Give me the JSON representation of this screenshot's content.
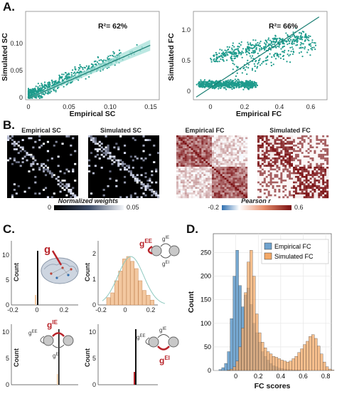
{
  "panels": {
    "A": "A.",
    "B": "B.",
    "C": "C.",
    "D": "D."
  },
  "panel_A": {
    "left": {
      "r2_label": "R²= 62%",
      "xlabel": "Empirical SC",
      "ylabel": "Simulated SC",
      "xticks": [
        "0",
        "0.05",
        "0.10",
        "0.15"
      ],
      "yticks": [
        "0",
        "0.05",
        "0.10"
      ]
    },
    "right": {
      "r2_label": "R²= 66%",
      "xlabel": "Empirical FC",
      "ylabel": "Simulated FC",
      "xticks": [
        "0",
        "0.2",
        "0.4",
        "0.6"
      ],
      "yticks": [
        "0",
        "0.5",
        "1.0"
      ]
    },
    "color_point": "#1e9b8c",
    "color_band": "#a6e0d8"
  },
  "panel_B": {
    "matrix_titles": [
      "Empirical SC",
      "Simulated SC",
      "Empirical FC",
      "Simulated FC"
    ],
    "sc_colorbar": {
      "label": "Normalized weights",
      "min": "0",
      "max": "0.05"
    },
    "fc_colorbar": {
      "label": "Pearson r",
      "min": "-0.2",
      "max": "0.6"
    }
  },
  "panel_C": {
    "symbols": {
      "g": "g",
      "gee": "g",
      "gee_sup": "EE",
      "gie": "g",
      "gie_sup": "IE",
      "gei": "g",
      "gei_sup": "EI"
    },
    "plots": [
      {
        "ylabel": "Count",
        "yticks": [
          "0",
          "5",
          "10"
        ],
        "xticks": [
          "-0.2",
          "0",
          "0.2"
        ]
      },
      {
        "ylabel": "Count",
        "yticks": [
          "0",
          "1",
          "2"
        ],
        "xticks": [
          "-0.2",
          "0",
          "0.2"
        ]
      },
      {
        "ylabel": "Count",
        "yticks": [
          "0",
          "5",
          "10"
        ],
        "xticks": [
          "-0.2",
          "0",
          "0.2"
        ]
      },
      {
        "ylabel": "Count",
        "yticks": [
          "0",
          "5",
          "10"
        ],
        "xticks": [
          "-0.2",
          "0",
          "0.2"
        ]
      }
    ],
    "color_bar": "#f3c8a0",
    "color_highlight": "#b8242a"
  },
  "chart_data": {
    "type": "bar",
    "title": "",
    "xlabel": "FC scores",
    "ylabel": "Count",
    "xlim": [
      -0.2,
      0.85
    ],
    "ylim": [
      0,
      290
    ],
    "xticks": [
      "0",
      "0.2",
      "0.4",
      "0.6",
      "0.8"
    ],
    "yticks": [
      "0",
      "50",
      "100",
      "150",
      "200",
      "250"
    ],
    "legend_position": "top-right",
    "bin_start": -0.15,
    "bin_width": 0.025,
    "series": [
      {
        "name": "Empirical FC",
        "color": "#6fa3cf",
        "values": [
          2,
          6,
          15,
          40,
          110,
          200,
          255,
          180,
          135,
          160,
          175,
          140,
          100,
          80,
          60,
          40,
          30,
          22,
          15,
          10,
          8,
          5,
          4,
          3,
          2,
          2,
          1,
          1,
          1,
          0,
          0,
          0,
          0,
          0,
          0,
          0,
          0,
          0,
          0,
          0,
          0
        ]
      },
      {
        "name": "Simulated FC",
        "color": "#f4a967",
        "values": [
          0,
          0,
          0,
          1,
          3,
          8,
          20,
          50,
          90,
          165,
          230,
          255,
          200,
          120,
          80,
          60,
          48,
          40,
          35,
          30,
          28,
          25,
          22,
          20,
          18,
          20,
          25,
          30,
          38,
          46,
          55,
          62,
          72,
          76,
          68,
          52,
          35,
          18,
          8,
          3,
          1
        ]
      }
    ]
  }
}
